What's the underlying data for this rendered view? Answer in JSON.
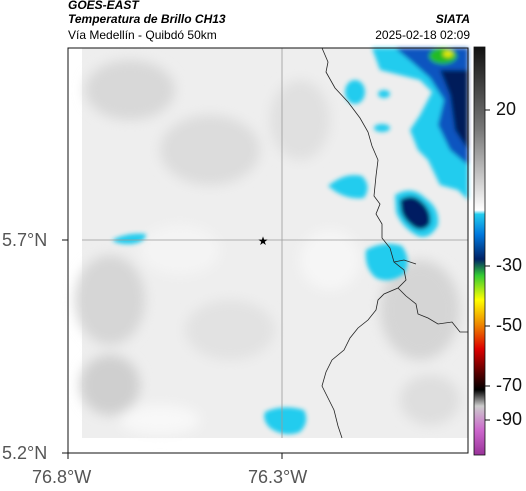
{
  "header": {
    "satellite": "GOES-EAST",
    "product": "Temperatura de Brillo CH13",
    "route": "Vía Medellín - Quibdó 50km",
    "source": "SIATA",
    "timestamp": "2025-02-18 02:09"
  },
  "map": {
    "lat_ticks": [
      {
        "value": 5.7,
        "label": "5.7°N"
      },
      {
        "value": 5.2,
        "label": "5.2°N"
      }
    ],
    "lon_ticks": [
      {
        "value": -76.8,
        "label": "76.8°W"
      },
      {
        "value": -76.3,
        "label": "76.3°W"
      }
    ],
    "marker_symbol": "★",
    "marker_icon": "star-icon"
  },
  "colorbar": {
    "labels": [
      {
        "value": 20,
        "text": "20"
      },
      {
        "value": -30,
        "text": "-30"
      },
      {
        "value": -50,
        "text": "-50"
      },
      {
        "value": -70,
        "text": "-70"
      },
      {
        "value": -90,
        "text": "-90"
      }
    ]
  }
}
